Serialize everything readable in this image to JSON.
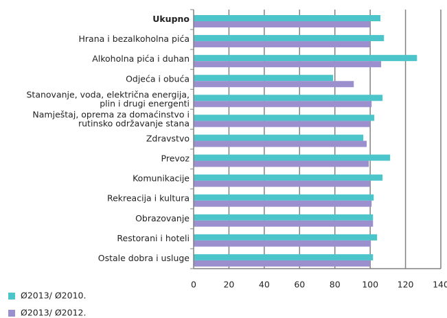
{
  "chart_data": {
    "type": "bar",
    "orientation": "horizontal",
    "categories": [
      "Ukupno",
      "Hrana i bezalkoholna pića",
      "Alkoholna pića i duhan",
      "Odjeća i obuća",
      "Stanovanje, voda, električna energija,\nplin i drugi energenti",
      "Namještaj, oprema za domaćinstvo i\nrutinsko održavanje stana",
      "Zdravstvo",
      "Prevoz",
      "Komunikacije",
      "Rekreacija i kultura",
      "Obrazovanje",
      "Restorani i hoteli",
      "Ostale dobra i usluge"
    ],
    "series": [
      {
        "name": "Ø2013/ Ø2010.",
        "color": "#4bc5c9",
        "values": [
          105.8,
          107.8,
          126.5,
          79,
          107,
          102.3,
          96.1,
          111.3,
          107,
          102,
          101.6,
          103.9,
          101.6
        ]
      },
      {
        "name": "Ø2013/ Ø2012.",
        "color": "#9b8fce",
        "values": [
          100,
          100,
          106.2,
          90.7,
          100.8,
          100,
          98,
          99.2,
          100,
          100.8,
          101.6,
          100.4,
          100
        ]
      }
    ],
    "xlim": [
      0,
      140
    ],
    "xticks": [
      0,
      20,
      40,
      60,
      80,
      100,
      120,
      140
    ],
    "grid": true
  }
}
